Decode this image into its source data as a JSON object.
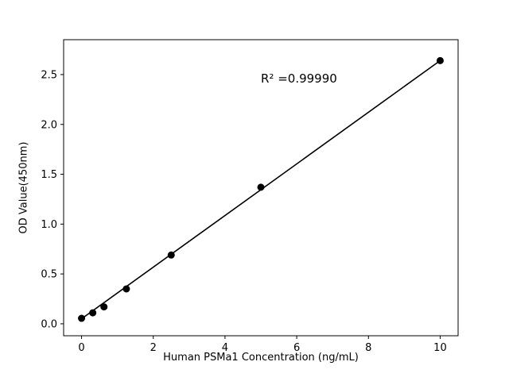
{
  "chart_data": {
    "type": "scatter",
    "title": "",
    "xlabel": "Human PSMa1 Concentration (ng/mL)",
    "ylabel": "OD Value(450nm)",
    "xlim": [
      -0.5,
      10.5
    ],
    "ylim": [
      -0.12,
      2.85
    ],
    "xticks": {
      "values": [
        0,
        2,
        4,
        6,
        8,
        10
      ],
      "labels": [
        "0",
        "2",
        "4",
        "6",
        "8",
        "10"
      ]
    },
    "yticks": {
      "values": [
        0.0,
        0.5,
        1.0,
        1.5,
        2.0,
        2.5
      ],
      "labels": [
        "0.0",
        "0.5",
        "1.0",
        "1.5",
        "2.0",
        "2.5"
      ]
    },
    "points": {
      "x": [
        0,
        0.313,
        0.625,
        1.25,
        2.5,
        5,
        10
      ],
      "y": [
        0.055,
        0.11,
        0.17,
        0.35,
        0.69,
        1.37,
        2.64
      ]
    },
    "fit_line": {
      "x1": 0,
      "y1": 0.05,
      "x2": 10,
      "y2": 2.64
    },
    "annotation": {
      "text": "R² =0.99990",
      "x": 5.0,
      "y": 2.45
    },
    "grid": false,
    "legend": null,
    "marker_size": 4.5,
    "colors": {
      "marker": "#000000",
      "line": "#000000",
      "axis": "#000000",
      "background": "#ffffff"
    }
  }
}
